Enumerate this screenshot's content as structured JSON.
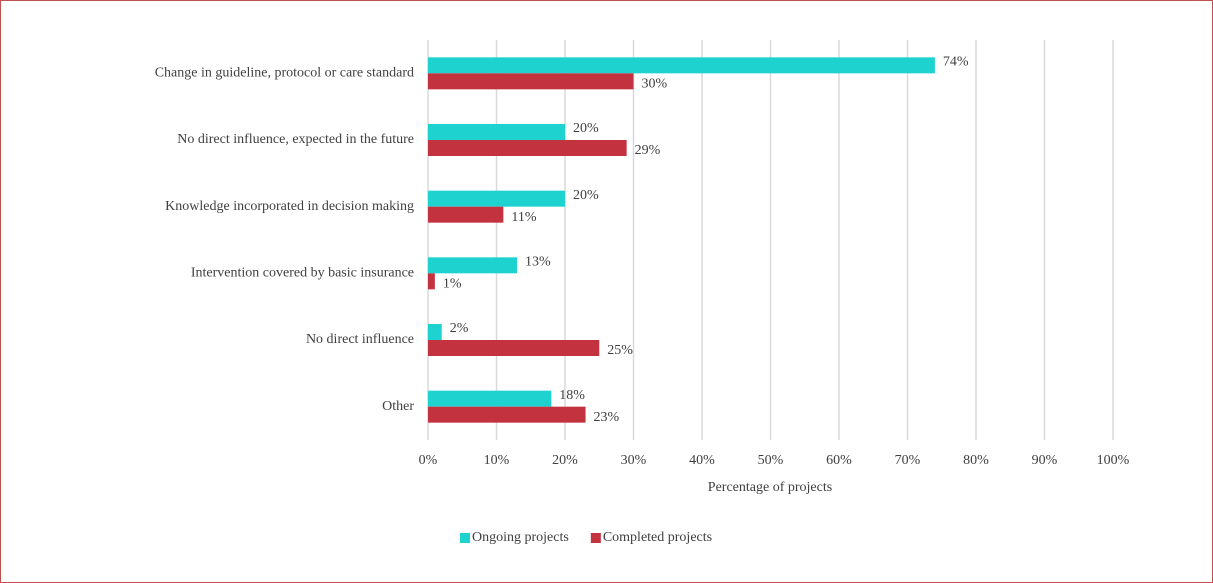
{
  "chart_data": {
    "type": "hbar",
    "categories": [
      "Change in guideline, protocol or care standard",
      "No direct influence, expected in the future",
      "Knowledge incorporated in decision making",
      "Intervention covered by basic insurance",
      "No direct influence",
      "Other"
    ],
    "series": [
      {
        "name": "Ongoing projects",
        "color": "#1ed3cf",
        "values": [
          74,
          20,
          20,
          13,
          2,
          18
        ],
        "value_labels": [
          "74%",
          "20%",
          "20%",
          "13%",
          "2%",
          "18%"
        ]
      },
      {
        "name": "Completed projects",
        "color": "#c3323f",
        "values": [
          30,
          29,
          11,
          1,
          25,
          23
        ],
        "value_labels": [
          "30%",
          "29%",
          "11%",
          "1%",
          "25%",
          "23%"
        ]
      }
    ],
    "xlabel": "Percentage of projects",
    "xlim": [
      0,
      100
    ],
    "xticks": [
      {
        "value": 0,
        "label": "0%"
      },
      {
        "value": 10,
        "label": "10%"
      },
      {
        "value": 20,
        "label": "20%"
      },
      {
        "value": 30,
        "label": "30%"
      },
      {
        "value": 40,
        "label": "40%"
      },
      {
        "value": 50,
        "label": "50%"
      },
      {
        "value": 60,
        "label": "60%"
      },
      {
        "value": 70,
        "label": "70%"
      },
      {
        "value": 80,
        "label": "80%"
      },
      {
        "value": 90,
        "label": "90%"
      },
      {
        "value": 100,
        "label": "100%"
      }
    ],
    "grid": true,
    "legend": "bottom"
  }
}
